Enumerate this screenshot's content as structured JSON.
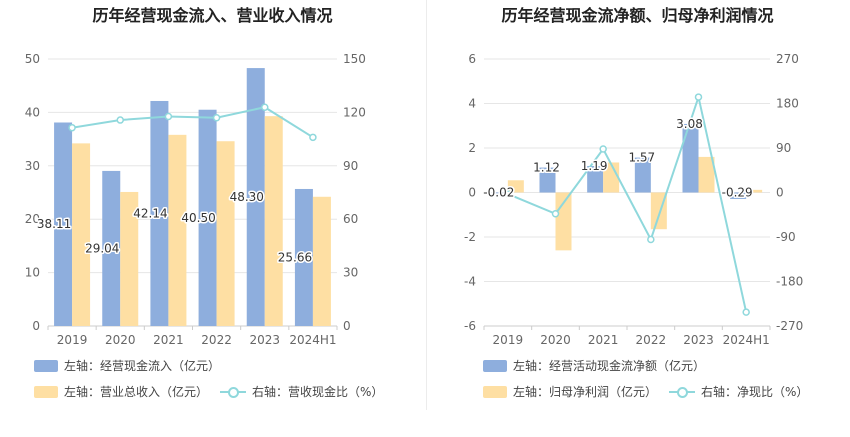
{
  "charts": [
    {
      "title": "历年经营现金流入、营业收入情况",
      "legend": [
        {
          "label": "左轴：经营现金流入（亿元）",
          "kind": "bar",
          "color": "#8eaedd"
        },
        {
          "label": "左轴：营业总收入（亿元）",
          "kind": "bar",
          "color": "#fedfa3"
        },
        {
          "label": "右轴：营收现金比（%）",
          "kind": "line",
          "color": "#8fd8dc"
        }
      ]
    },
    {
      "title": "历年经营现金流净额、归母净利润情况",
      "legend": [
        {
          "label": "左轴：经营活动现金流净额（亿元）",
          "kind": "bar",
          "color": "#8eaedd"
        },
        {
          "label": "左轴：归母净利润（亿元）",
          "kind": "bar",
          "color": "#fedfa3"
        },
        {
          "label": "右轴：净现比（%）",
          "kind": "line",
          "color": "#8fd8dc"
        }
      ]
    }
  ],
  "chart_data": [
    {
      "type": "bar",
      "title": "历年经营现金流入、营业收入情况",
      "categories": [
        "2019",
        "2020",
        "2021",
        "2022",
        "2023",
        "2024H1"
      ],
      "series": [
        {
          "name": "左轴：经营现金流入（亿元）",
          "axis": "left",
          "kind": "bar",
          "color": "#8eaedd",
          "values": [
            38.11,
            29.04,
            42.14,
            40.5,
            48.3,
            25.66
          ],
          "labels": [
            "38.11",
            "29.04",
            "42.14",
            "40.50",
            "48.30",
            "25.66"
          ]
        },
        {
          "name": "左轴：营业总收入（亿元）",
          "axis": "left",
          "kind": "bar",
          "color": "#fedfa3",
          "values": [
            34.2,
            25.1,
            35.8,
            34.6,
            39.3,
            24.2
          ]
        },
        {
          "name": "右轴：营收现金比（%）",
          "axis": "right",
          "kind": "line",
          "color": "#8fd8dc",
          "values": [
            111.4,
            115.7,
            117.7,
            117.0,
            122.9,
            106.0
          ]
        }
      ],
      "yleft": {
        "min": 0,
        "max": 50,
        "ticks": [
          "0",
          "10",
          "20",
          "30",
          "40",
          "50"
        ]
      },
      "yright": {
        "min": 0,
        "max": 150,
        "ticks": [
          "0",
          "30",
          "60",
          "90",
          "120",
          "150"
        ]
      },
      "grid": true,
      "legend_position": "bottom"
    },
    {
      "type": "bar",
      "title": "历年经营现金流净额、归母净利润情况",
      "categories": [
        "2019",
        "2020",
        "2021",
        "2022",
        "2023",
        "2024H1"
      ],
      "series": [
        {
          "name": "左轴：经营活动现金流净额（亿元）",
          "axis": "left",
          "kind": "bar",
          "color": "#8eaedd",
          "values": [
            -0.02,
            1.12,
            1.19,
            1.57,
            3.08,
            -0.29
          ],
          "labels": [
            "-0.02",
            "1.12",
            "1.19",
            "1.57",
            "3.08",
            "-0.29"
          ]
        },
        {
          "name": "左轴：归母净利润（亿元）",
          "axis": "left",
          "kind": "bar",
          "color": "#fedfa3",
          "values": [
            0.55,
            -2.6,
            1.35,
            -1.65,
            1.6,
            0.12
          ]
        },
        {
          "name": "右轴：净现比（%）",
          "axis": "right",
          "kind": "line",
          "color": "#8fd8dc",
          "values": [
            -3,
            -43,
            88,
            -95,
            193,
            -242
          ]
        }
      ],
      "yleft": {
        "min": -6,
        "max": 6,
        "ticks": [
          "-6",
          "-4",
          "-2",
          "0",
          "2",
          "4",
          "6"
        ]
      },
      "yright": {
        "min": -270,
        "max": 270,
        "ticks": [
          "-270",
          "-180",
          "-90",
          "0",
          "90",
          "180",
          "270"
        ]
      },
      "grid": true,
      "legend_position": "bottom"
    }
  ]
}
